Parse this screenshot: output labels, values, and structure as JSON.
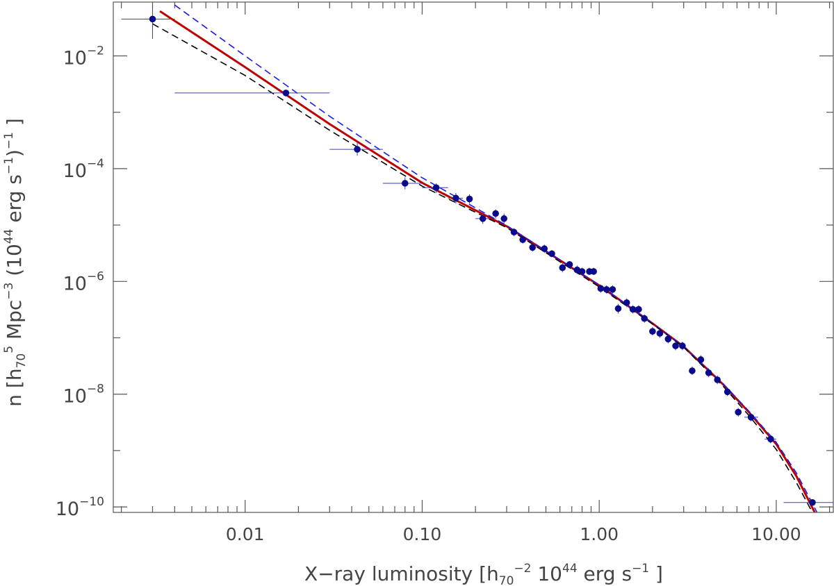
{
  "chart_data": {
    "type": "scatter",
    "title": "",
    "xlabel": {
      "prefix": "X−ray luminosity  [h",
      "sub": "70",
      "sup1": "−2",
      "mid": " 10",
      "sup2": "44",
      "mid2": " erg s",
      "sup3": "−1",
      "suffix": " ]"
    },
    "ylabel": {
      "prefix": "n [h",
      "sub": "70",
      "sup1": "5",
      "mid": " Mpc",
      "sup2": "−3",
      "mid2": " (10",
      "sup3": "44",
      "mid3": " erg s",
      "sup4": "−1",
      "mid4": ")",
      "sup5": "−1",
      "suffix": " ]"
    },
    "xscale": "log",
    "yscale": "log",
    "xlim": [
      0.0018,
      21
    ],
    "ylim": [
      8e-11,
      0.09
    ],
    "xticks": [
      {
        "value": 0.01,
        "label": "0.01"
      },
      {
        "value": 0.1,
        "label": "0.10"
      },
      {
        "value": 1,
        "label": "1.00"
      },
      {
        "value": 10,
        "label": "10.00"
      }
    ],
    "yticks": [
      {
        "value": 0.01,
        "base": "10",
        "exp": "−2"
      },
      {
        "value": 0.0001,
        "base": "10",
        "exp": "−4"
      },
      {
        "value": 1e-06,
        "base": "10",
        "exp": "−6"
      },
      {
        "value": 1e-08,
        "base": "10",
        "exp": "−8"
      },
      {
        "value": 1e-10,
        "base": "10",
        "exp": "−10"
      }
    ],
    "series": [
      {
        "kind": "points",
        "color": "#0a0a8c",
        "points": [
          {
            "x": 0.003,
            "y": 0.045,
            "xlo": 0.002,
            "xhi": 0.004,
            "ylo": 0.02,
            "yhi": 0.08
          },
          {
            "x": 0.017,
            "y": 0.0022,
            "xlo": 0.004,
            "xhi": 0.03
          },
          {
            "x": 0.043,
            "y": 0.00022,
            "xlo": 0.03,
            "xhi": 0.06,
            "ylo": 0.00017,
            "yhi": 0.0003
          },
          {
            "x": 0.08,
            "y": 5.5e-05,
            "xlo": 0.06,
            "xhi": 0.1,
            "ylo": 4.3e-05,
            "yhi": 7e-05
          },
          {
            "x": 0.12,
            "y": 4.6e-05,
            "xlo": 0.1,
            "xhi": 0.14,
            "ylo": 3.7e-05,
            "yhi": 5.5e-05
          },
          {
            "x": 0.155,
            "y": 3e-05,
            "xlo": 0.14,
            "xhi": 0.17,
            "ylo": 2.4e-05,
            "yhi": 3.7e-05
          },
          {
            "x": 0.185,
            "y": 2.9e-05,
            "ylo": 2.4e-05,
            "yhi": 3.5e-05
          },
          {
            "x": 0.22,
            "y": 1.3e-05,
            "xlo": 0.2,
            "xhi": 0.24,
            "ylo": 1.05e-05,
            "yhi": 1.6e-05
          },
          {
            "x": 0.26,
            "y": 1.6e-05,
            "ylo": 1.3e-05,
            "yhi": 1.9e-05
          },
          {
            "x": 0.29,
            "y": 1.3e-05,
            "ylo": 1.05e-05,
            "yhi": 1.6e-05
          },
          {
            "x": 0.33,
            "y": 7.5e-06,
            "ylo": 6.3e-06,
            "yhi": 8.8e-06
          },
          {
            "x": 0.37,
            "y": 5.5e-06,
            "ylo": 4.7e-06,
            "yhi": 6.4e-06
          },
          {
            "x": 0.42,
            "y": 4e-06,
            "ylo": 3.4e-06,
            "yhi": 4.7e-06
          },
          {
            "x": 0.49,
            "y": 3.8e-06,
            "ylo": 3.2e-06,
            "yhi": 4.5e-06
          },
          {
            "x": 0.54,
            "y": 3.1e-06,
            "ylo": 2.7e-06,
            "yhi": 3.6e-06
          },
          {
            "x": 0.62,
            "y": 1.75e-06,
            "ylo": 1.45e-06,
            "yhi": 2.1e-06
          },
          {
            "x": 0.68,
            "y": 2e-06,
            "ylo": 1.7e-06,
            "yhi": 2.3e-06
          },
          {
            "x": 0.75,
            "y": 1.6e-06,
            "ylo": 1.35e-06,
            "yhi": 1.9e-06
          },
          {
            "x": 0.8,
            "y": 1.5e-06,
            "ylo": 1.3e-06,
            "yhi": 1.75e-06
          },
          {
            "x": 0.88,
            "y": 1.5e-06,
            "ylo": 1.3e-06,
            "yhi": 1.75e-06
          },
          {
            "x": 0.93,
            "y": 1.5e-06,
            "ylo": 1.3e-06,
            "yhi": 1.75e-06
          },
          {
            "x": 1.02,
            "y": 7.5e-07,
            "ylo": 6.3e-07,
            "yhi": 8.8e-07
          },
          {
            "x": 1.1,
            "y": 7.2e-07,
            "ylo": 6.1e-07,
            "yhi": 8.5e-07
          },
          {
            "x": 1.19,
            "y": 7.2e-07,
            "ylo": 6.1e-07,
            "yhi": 8.5e-07
          },
          {
            "x": 1.28,
            "y": 3.3e-07,
            "ylo": 2.7e-07,
            "yhi": 4e-07
          },
          {
            "x": 1.43,
            "y": 4.2e-07,
            "ylo": 3.5e-07,
            "yhi": 5e-07
          },
          {
            "x": 1.55,
            "y": 3.2e-07,
            "ylo": 2.7e-07,
            "yhi": 3.8e-07
          },
          {
            "x": 1.67,
            "y": 3.2e-07,
            "ylo": 2.7e-07,
            "yhi": 3.8e-07
          },
          {
            "x": 1.8,
            "y": 2.2e-07,
            "ylo": 1.85e-07,
            "yhi": 2.6e-07
          },
          {
            "x": 2,
            "y": 1.3e-07,
            "ylo": 1.1e-07,
            "yhi": 1.55e-07
          },
          {
            "x": 2.2,
            "y": 1.2e-07,
            "ylo": 1e-07,
            "yhi": 1.4e-07
          },
          {
            "x": 2.45,
            "y": 9.5e-08,
            "ylo": 8e-08,
            "yhi": 1.12e-07
          },
          {
            "x": 2.7,
            "y": 7.2e-08,
            "ylo": 6e-08,
            "yhi": 8.5e-08
          },
          {
            "x": 2.95,
            "y": 7.2e-08,
            "ylo": 6e-08,
            "yhi": 8.5e-08
          },
          {
            "x": 3.35,
            "y": 2.6e-08,
            "ylo": 2.2e-08,
            "yhi": 3.1e-08
          },
          {
            "x": 3.75,
            "y": 4.1e-08,
            "ylo": 3.4e-08,
            "yhi": 4.9e-08
          },
          {
            "x": 4.15,
            "y": 2.4e-08,
            "ylo": 2e-08,
            "yhi": 2.9e-08
          },
          {
            "x": 4.65,
            "y": 1.8e-08,
            "ylo": 1.5e-08,
            "yhi": 2.15e-08
          },
          {
            "x": 5.3,
            "y": 1.1e-08,
            "ylo": 9.3e-09,
            "yhi": 1.3e-08
          },
          {
            "x": 6.1,
            "y": 4.8e-09,
            "ylo": 4e-09,
            "yhi": 5.7e-09
          },
          {
            "x": 7.2,
            "y": 3.9e-09,
            "xlo": 6.6,
            "xhi": 7.9,
            "ylo": 3.3e-09,
            "yhi": 4.6e-09
          },
          {
            "x": 9.3,
            "y": 1.6e-09,
            "xlo": 8.6,
            "xhi": 10,
            "ylo": 1.35e-09,
            "yhi": 1.9e-09
          },
          {
            "x": 16,
            "y": 1.2e-10,
            "xlo": 11,
            "xhi": 21
          }
        ]
      },
      {
        "kind": "curve",
        "style": "solid",
        "color": "#c00000",
        "points": [
          {
            "x": 0.0033,
            "y": 0.062
          },
          {
            "x": 0.01,
            "y": 0.0063
          },
          {
            "x": 0.03,
            "y": 0.00062
          },
          {
            "x": 0.1,
            "y": 5.6e-05
          },
          {
            "x": 0.3,
            "y": 9.5e-06
          },
          {
            "x": 1,
            "y": 8.5e-07
          },
          {
            "x": 2,
            "y": 1.8e-07
          },
          {
            "x": 3,
            "y": 7e-08
          },
          {
            "x": 5,
            "y": 1.5e-08
          },
          {
            "x": 7,
            "y": 4.8e-09
          },
          {
            "x": 10,
            "y": 1.3e-09
          },
          {
            "x": 13,
            "y": 3.5e-10
          },
          {
            "x": 16.5,
            "y": 7e-11
          }
        ]
      },
      {
        "kind": "curve",
        "style": "dashed",
        "color": "#1a1aee",
        "points": [
          {
            "x": 0.004,
            "y": 0.08
          },
          {
            "x": 0.01,
            "y": 0.01
          },
          {
            "x": 0.03,
            "y": 0.00085
          },
          {
            "x": 0.1,
            "y": 6.9e-05
          },
          {
            "x": 0.3,
            "y": 9.8e-06
          },
          {
            "x": 1,
            "y": 8.6e-07
          },
          {
            "x": 2,
            "y": 1.8e-07
          },
          {
            "x": 3,
            "y": 7e-08
          },
          {
            "x": 5,
            "y": 1.55e-08
          },
          {
            "x": 7,
            "y": 5e-09
          },
          {
            "x": 10,
            "y": 1.4e-09
          },
          {
            "x": 13,
            "y": 4e-10
          },
          {
            "x": 17,
            "y": 7e-11
          }
        ]
      },
      {
        "kind": "curve",
        "style": "dashed",
        "color": "#000000",
        "points": [
          {
            "x": 0.003,
            "y": 0.037
          },
          {
            "x": 0.01,
            "y": 0.0045
          },
          {
            "x": 0.03,
            "y": 0.00048
          },
          {
            "x": 0.1,
            "y": 4.9e-05
          },
          {
            "x": 0.3,
            "y": 9e-06
          },
          {
            "x": 1,
            "y": 8e-07
          },
          {
            "x": 2,
            "y": 1.75e-07
          },
          {
            "x": 3,
            "y": 6.8e-08
          },
          {
            "x": 5,
            "y": 1.4e-08
          },
          {
            "x": 7,
            "y": 4.2e-09
          },
          {
            "x": 10,
            "y": 1.05e-09
          },
          {
            "x": 13,
            "y": 2.7e-10
          },
          {
            "x": 16,
            "y": 7e-11
          }
        ]
      }
    ]
  }
}
